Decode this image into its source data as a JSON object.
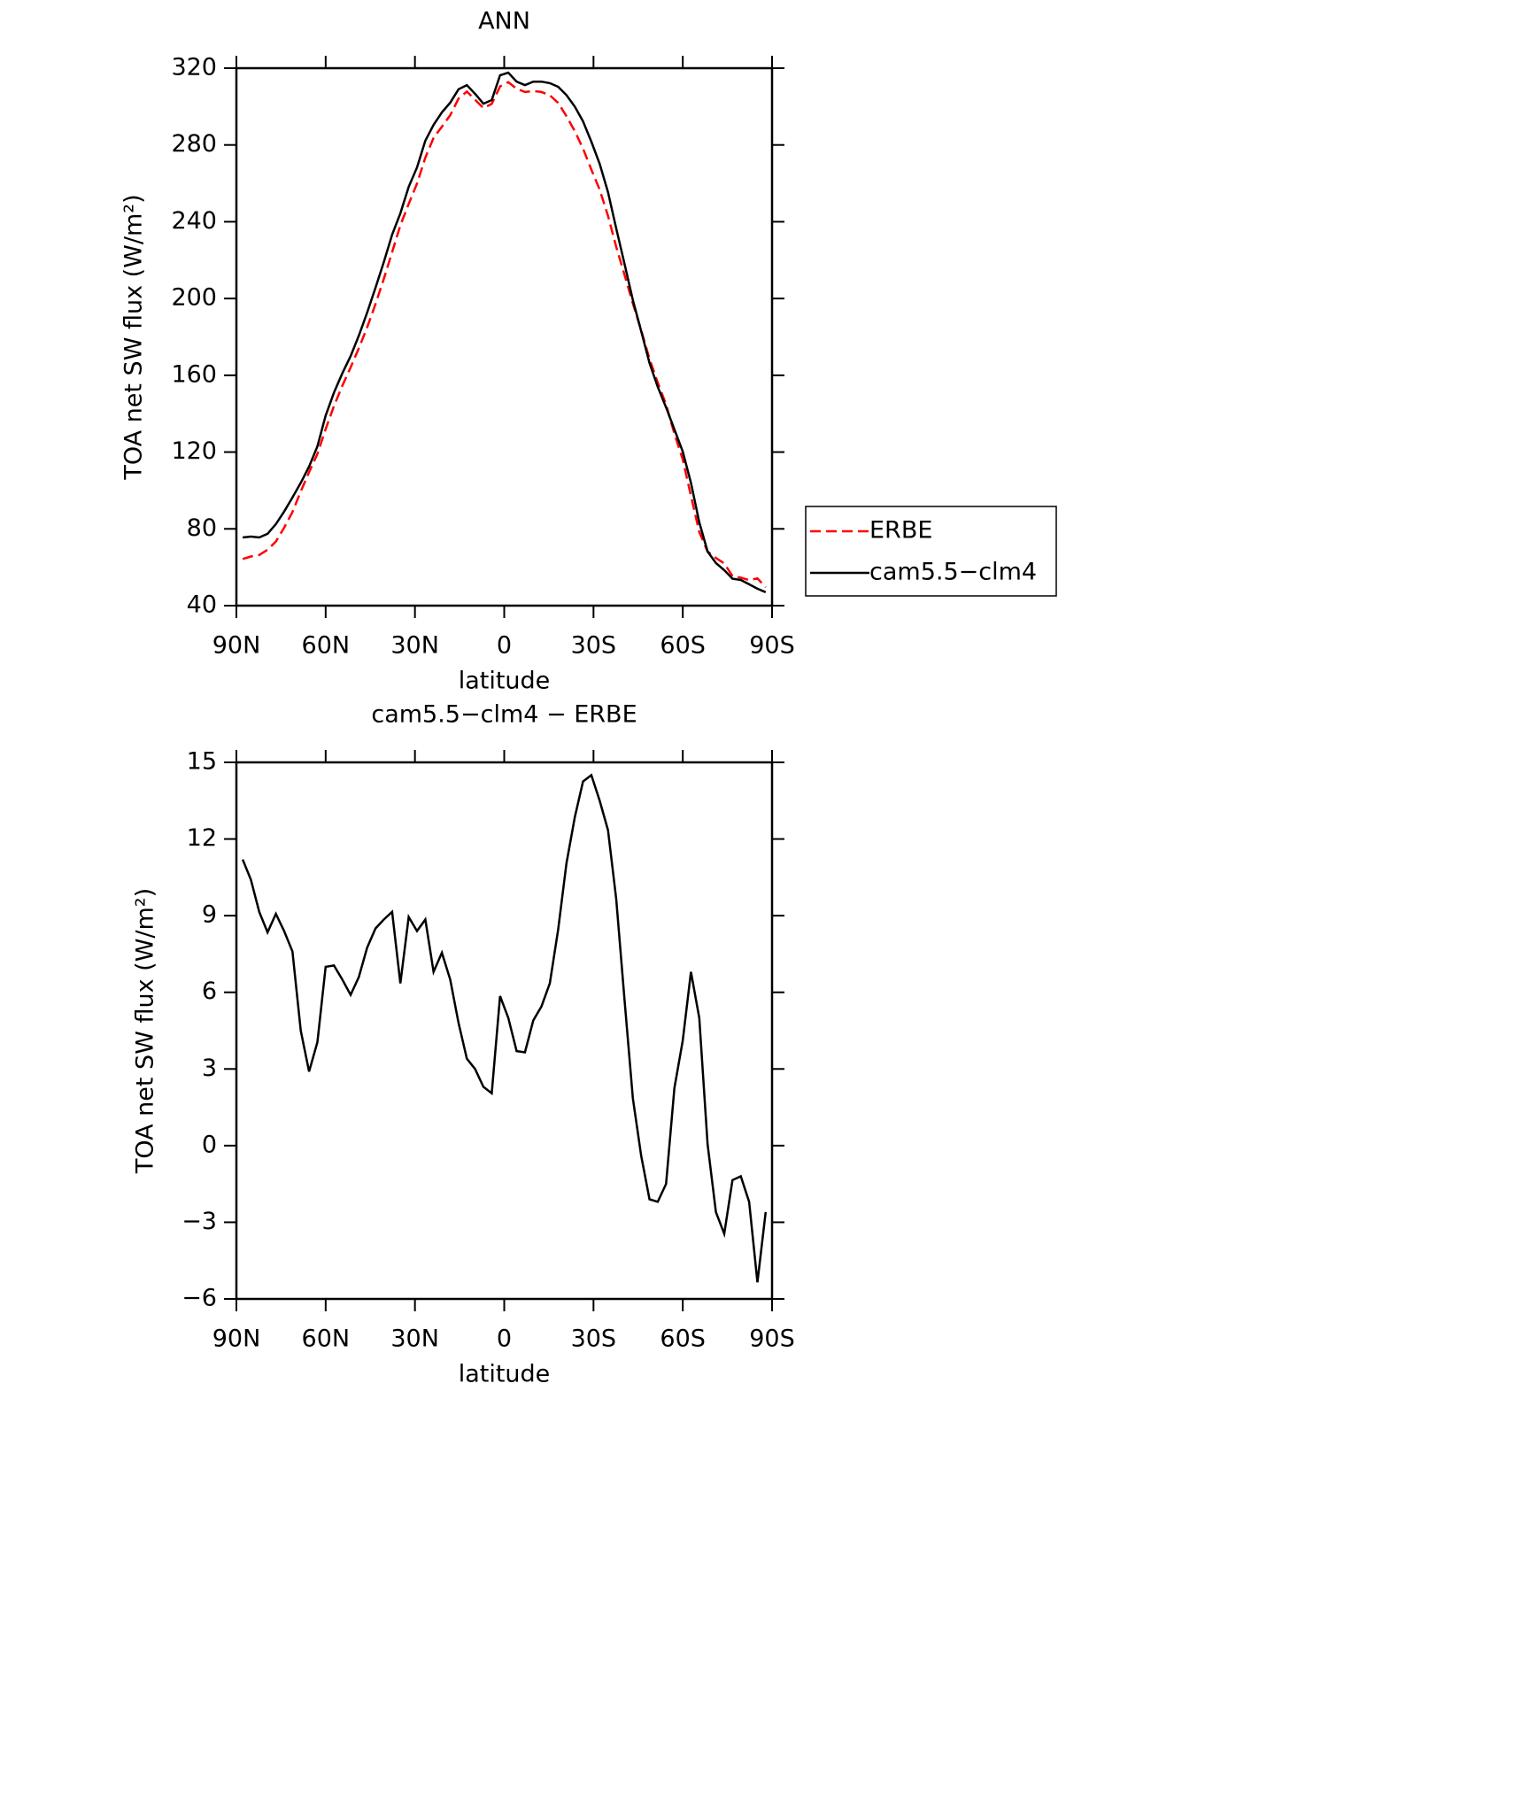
{
  "chart_data": [
    {
      "type": "line",
      "title": "ANN",
      "x_label": "latitude",
      "y_label": "TOA net SW flux (W/m²)",
      "x": [
        87.9,
        85.11,
        82.32,
        79.53,
        76.74,
        73.95,
        71.16,
        68.37,
        65.58,
        62.79,
        60,
        57.21,
        54.42,
        51.63,
        48.84,
        46.05,
        43.26,
        40.47,
        37.68,
        34.89,
        32.1,
        29.31,
        26.52,
        23.73,
        20.94,
        18.15,
        15.36,
        12.57,
        9.78,
        6.99,
        4.2,
        1.41,
        -1.38,
        -4.17,
        -6.96,
        -9.75,
        -12.54,
        -15.33,
        -18.12,
        -20.91,
        -23.7,
        -26.49,
        -29.28,
        -32.07,
        -34.86,
        -37.65,
        -40.44,
        -43.23,
        -46.02,
        -48.81,
        -51.6,
        -54.39,
        -57.18,
        -59.97,
        -62.76,
        -65.55,
        -68.34,
        -71.13,
        -73.92,
        -76.71,
        -79.5,
        -82.29,
        -85.08,
        -87.87
      ],
      "series": [
        {
          "name": "ERBE",
          "color": "#ff0000",
          "linestyle": "dashed",
          "values": [
            64.3,
            65.6,
            66.4,
            69.1,
            73.4,
            80.6,
            88.7,
            99.5,
            109.5,
            119.0,
            132.0,
            144.0,
            154.5,
            164.1,
            174.1,
            185.0,
            197.1,
            210.2,
            224.2,
            238.1,
            249.3,
            259.9,
            273.4,
            283.7,
            289.5,
            295.5,
            304.2,
            307.8,
            303.6,
            299.2,
            301.4,
            310.5,
            312.7,
            309.3,
            307.6,
            308.1,
            307.6,
            305.9,
            301.9,
            295.0,
            287.2,
            278.1,
            267.2,
            256.7,
            243.1,
            226.9,
            212.3,
            197.4,
            183.4,
            168.5,
            156.2,
            144.8,
            129.6,
            116.2,
            97.2,
            78.4,
            68.2,
            64.8,
            62.0,
            55.4,
            54.6,
            53.3,
            54.2,
            49.6
          ]
        },
        {
          "name": "cam5.5−clm4",
          "color": "#000000",
          "linestyle": "solid",
          "values": [
            75.5,
            76,
            75.5,
            77.4,
            82.5,
            89,
            96.3,
            104,
            112.4,
            123,
            139,
            151,
            161,
            170,
            180.7,
            192.7,
            205.6,
            219,
            233.3,
            244.4,
            258.2,
            268.3,
            282.2,
            290.5,
            297,
            302,
            309,
            311.2,
            306.6,
            301.5,
            303.4,
            316.3,
            317.7,
            313,
            311.2,
            313,
            313,
            312.2,
            310.3,
            306,
            300,
            292.3,
            281.7,
            270.2,
            255.4,
            236.5,
            218,
            199.2,
            183,
            166.4,
            154,
            143.3,
            131.8,
            120.3,
            104,
            83.4,
            68.2,
            62.2,
            58.5,
            54,
            53.4,
            51.1,
            48.8,
            47
          ]
        }
      ],
      "xlim": [
        90,
        -90
      ],
      "xticks": [
        {
          "value": 90,
          "label": "90N"
        },
        {
          "value": 60,
          "label": "60N"
        },
        {
          "value": 30,
          "label": "30N"
        },
        0,
        {
          "value": -30,
          "label": "30S"
        },
        {
          "value": -60,
          "label": "60S"
        },
        {
          "value": -90,
          "label": "90S"
        }
      ],
      "ylim": [
        40,
        320
      ],
      "yticks": [
        40,
        80,
        120,
        160,
        200,
        240,
        280,
        320
      ],
      "legend": "right"
    },
    {
      "type": "line",
      "title": "cam5.5−clm4 − ERBE",
      "x_label": "latitude",
      "y_label": "TOA net SW flux (W/m²)",
      "x": [
        87.9,
        85.11,
        82.32,
        79.53,
        76.74,
        73.95,
        71.16,
        68.37,
        65.58,
        62.79,
        60,
        57.21,
        54.42,
        51.63,
        48.84,
        46.05,
        43.26,
        40.47,
        37.68,
        34.89,
        32.1,
        29.31,
        26.52,
        23.73,
        20.94,
        18.15,
        15.36,
        12.57,
        9.78,
        6.99,
        4.2,
        1.41,
        -1.38,
        -4.17,
        -6.96,
        -9.75,
        -12.54,
        -15.33,
        -18.12,
        -20.91,
        -23.7,
        -26.49,
        -29.28,
        -32.07,
        -34.86,
        -37.65,
        -40.44,
        -43.23,
        -46.02,
        -48.81,
        -51.6,
        -54.39,
        -57.18,
        -59.97,
        -62.76,
        -65.55,
        -68.34,
        -71.13,
        -73.92,
        -76.71,
        -79.5,
        -82.29,
        -85.08,
        -87.87
      ],
      "color": "#000000",
      "values": [
        11.2,
        10.4,
        9.15,
        8.35,
        9.07,
        8.4,
        7.6,
        4.5,
        2.9,
        4.05,
        7.0,
        7.05,
        6.5,
        5.9,
        6.6,
        7.75,
        8.5,
        8.85,
        9.15,
        6.35,
        8.95,
        8.4,
        8.85,
        6.8,
        7.55,
        6.5,
        4.8,
        3.4,
        3.0,
        2.3,
        2.05,
        5.85,
        5.0,
        3.7,
        3.65,
        4.9,
        5.45,
        6.35,
        8.45,
        11.05,
        12.85,
        14.25,
        14.5,
        13.5,
        12.35,
        9.65,
        5.7,
        1.85,
        -0.4,
        -2.1,
        -2.2,
        -1.5,
        2.25,
        4.1,
        6.8,
        5.0,
        0.05,
        -2.6,
        -3.45,
        -1.35,
        -1.2,
        -2.2,
        -5.35,
        -2.6
      ],
      "xlim": [
        90,
        -90
      ],
      "xticks": [
        {
          "value": 90,
          "label": "90N"
        },
        {
          "value": 60,
          "label": "60N"
        },
        {
          "value": 30,
          "label": "30N"
        },
        0,
        {
          "value": -30,
          "label": "30S"
        },
        {
          "value": -60,
          "label": "60S"
        },
        {
          "value": -90,
          "label": "90S"
        }
      ],
      "ylim": [
        -6,
        15
      ],
      "yticks": [
        {
          "value": -6,
          "label": "−6"
        },
        {
          "value": -3,
          "label": "−3"
        },
        0,
        3,
        6,
        9,
        12,
        15
      ]
    }
  ]
}
